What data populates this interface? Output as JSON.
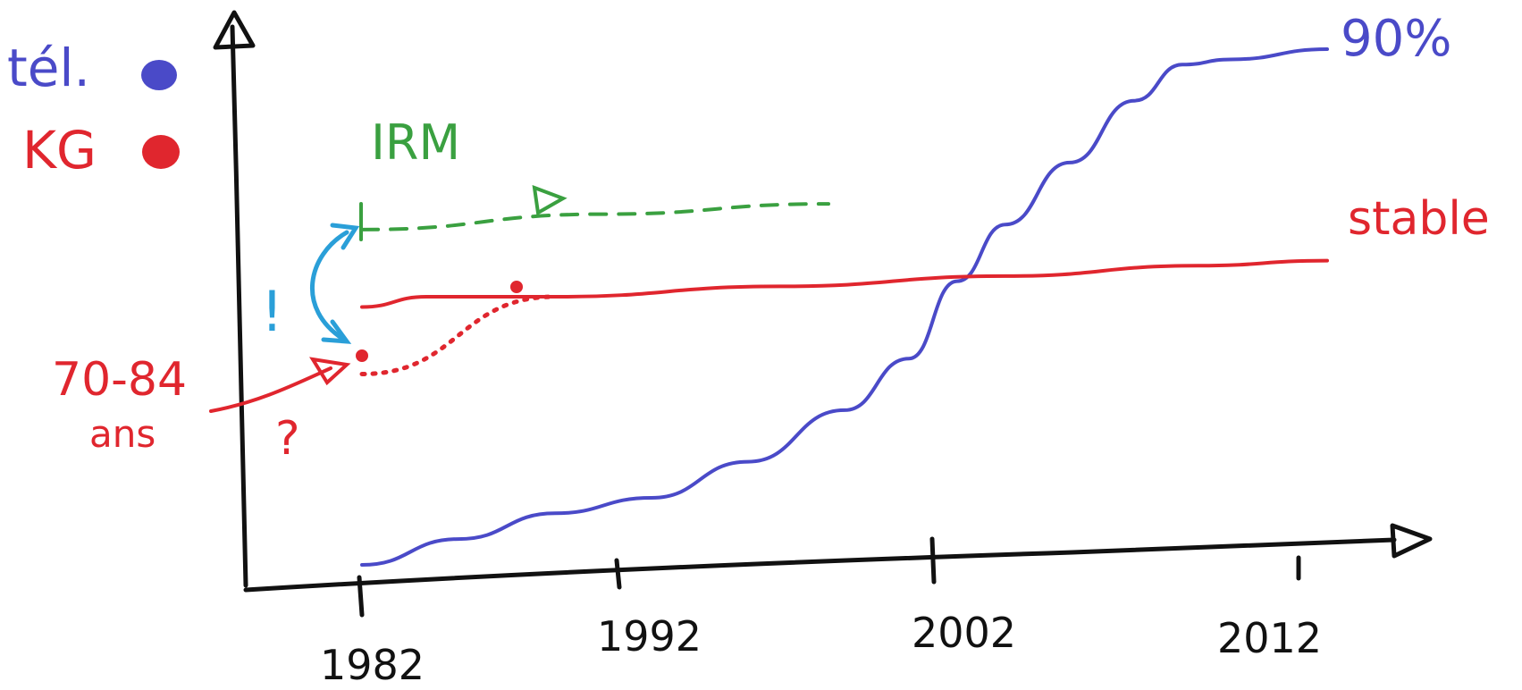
{
  "colors": {
    "tel": "#4a4ac8",
    "kg": "#e0262e",
    "irm": "#3aa040",
    "arrow": "#2a9fd8",
    "axis": "#111111"
  },
  "legend": [
    {
      "label": "tél.",
      "color": "#4a4ac8",
      "marker": "dot"
    },
    {
      "label": "KG",
      "color": "#e0262e",
      "marker": "dot"
    }
  ],
  "annotations": {
    "tel_end": "90%",
    "kg_end": "stable",
    "irm": "IRM",
    "age_line1": "70-84",
    "age_line2": "ans",
    "question": "?",
    "exclaim": "!"
  },
  "chart_data": {
    "type": "line",
    "xlabel": "",
    "ylabel": "",
    "xlim": [
      1982,
      2012
    ],
    "ylim": [
      0,
      100
    ],
    "x_ticks": [
      "1982",
      "1992",
      "2002",
      "2012"
    ],
    "grid": false,
    "legend_position": "top-left",
    "series": [
      {
        "name": "tél.",
        "color": "#4a4ac8",
        "style": "solid",
        "x": [
          1982,
          1985,
          1988,
          1991,
          1994,
          1997,
          1999,
          2000.5,
          2002,
          2004,
          2006,
          2007.5,
          2009,
          2012
        ],
        "y": [
          0,
          5,
          10,
          13,
          20,
          30,
          40,
          55,
          66,
          78,
          90,
          97,
          98,
          100
        ]
      },
      {
        "name": "KG",
        "color": "#e0262e",
        "style": "solid",
        "x": [
          1982,
          1984,
          1988,
          1995,
          2002,
          2008,
          2012
        ],
        "y": [
          50,
          52,
          52,
          54,
          56,
          58,
          59
        ]
      },
      {
        "name": "",
        "color": "#e0262e",
        "style": "dotted",
        "x": [
          1982,
          1988
        ],
        "y": [
          37,
          52
        ]
      },
      {
        "name": "IRM",
        "color": "#3aa040",
        "style": "dashed",
        "x": [
          1982,
          1989.5,
          1996.5
        ],
        "y": [
          65,
          68,
          70
        ]
      }
    ]
  }
}
